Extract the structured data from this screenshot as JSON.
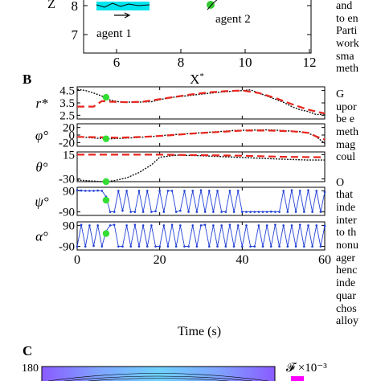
{
  "panel_a": {
    "ylabel_glyph": "Z",
    "ytick_8": "8",
    "ytick_7": "7",
    "xticks": [
      "6",
      "8",
      "10",
      "12"
    ],
    "xlabel": "X*",
    "agent1_label": "agent 1",
    "agent2_label": "agent 2",
    "colors": {
      "agent_path": "#00e5ee",
      "agent2_marker": "#33cc33"
    }
  },
  "panel_b": {
    "label": "B",
    "time_axis_label": "Time (s)",
    "time_ticks": [
      "0",
      "20",
      "40",
      "60"
    ],
    "subplots": [
      {
        "ylabel": "r*",
        "yticks": [
          "4.5",
          "3.5",
          "2.5"
        ]
      },
      {
        "ylabel": "φ°",
        "yticks": [
          "20",
          "0",
          "-20"
        ]
      },
      {
        "ylabel": "θ°",
        "yticks": [
          "15",
          "-30"
        ]
      },
      {
        "ylabel": "ψ°",
        "yticks": [
          "90",
          "-90"
        ]
      },
      {
        "ylabel": "α°",
        "yticks": [
          "90",
          "-90"
        ]
      }
    ],
    "colors": {
      "measured": "#111111",
      "fit": "#e8251e",
      "angle_series": "#1f3fd6",
      "marker": "#33dd33"
    }
  },
  "panel_c": {
    "label": "C",
    "ytick_180": "180",
    "colorbar_label": "𝓕 ×10⁻³",
    "colors": {
      "heatmap_top": "#8a5bff",
      "heatmap_mid": "#6fd2ff",
      "colorbar": "#ff00ff"
    }
  },
  "side_text_lines": [
    "and",
    "to en",
    "Parti",
    "work",
    "sma",
    "meth",
    "",
    "G",
    "upor",
    "be e",
    "meth",
    "mag",
    "coul",
    "",
    "O",
    "that",
    "inde",
    "inter",
    "to th",
    "nonu",
    "ager",
    "henc",
    "inde",
    "quar",
    "chos",
    "alloy"
  ],
  "chart_data": [
    {
      "type": "line",
      "title": "",
      "xlabel": "Time (s)",
      "ylabel": "r*",
      "xlim": [
        0,
        60
      ],
      "ylim": [
        2.2,
        4.8
      ],
      "series": [
        {
          "x": [
            0,
            2,
            4,
            6,
            8,
            10,
            14,
            18,
            22,
            26,
            30,
            34,
            38,
            42,
            44,
            46,
            48,
            50,
            52,
            54,
            56,
            58,
            60
          ],
          "y": [
            4.6,
            4.5,
            4.3,
            4.05,
            3.72,
            3.6,
            3.55,
            3.6,
            3.9,
            4.05,
            4.2,
            4.35,
            4.45,
            4.55,
            4.3,
            4.05,
            3.8,
            3.55,
            3.2,
            2.95,
            2.8,
            2.55,
            2.6
          ]
        },
        {
          "x": [
            0,
            4,
            6,
            8,
            12,
            16,
            20,
            24,
            28,
            32,
            36,
            40,
            44,
            48,
            52,
            56,
            60
          ],
          "y": [
            3.2,
            3.2,
            3.65,
            3.6,
            3.55,
            3.6,
            3.8,
            4.0,
            4.2,
            4.35,
            4.45,
            4.5,
            4.3,
            3.9,
            3.4,
            2.95,
            2.65
          ]
        }
      ],
      "markers": [
        {
          "x": 7,
          "y": 3.95
        }
      ]
    },
    {
      "type": "line",
      "xlabel": "Time (s)",
      "ylabel": "φ°",
      "xlim": [
        0,
        60
      ],
      "ylim": [
        -30,
        30
      ],
      "series": [
        {
          "x": [
            0,
            2,
            4,
            6,
            8,
            10,
            14,
            18,
            22,
            26,
            30,
            34,
            38,
            42,
            46,
            50,
            54,
            56,
            58,
            60
          ],
          "y": [
            -5,
            -6,
            -8,
            -9,
            -10,
            -9,
            -7,
            -4,
            0,
            3,
            6,
            9,
            12,
            13,
            14,
            12,
            9,
            5,
            -5,
            -22
          ]
        },
        {
          "x": [
            0,
            6,
            10,
            16,
            22,
            28,
            34,
            40,
            46,
            52,
            56,
            58,
            60
          ],
          "y": [
            -5,
            -6,
            -7,
            -5,
            -1,
            4,
            8,
            12,
            12,
            10,
            6,
            -4,
            -12
          ]
        }
      ],
      "markers": [
        {
          "x": 7,
          "y": -10
        }
      ]
    },
    {
      "type": "line",
      "xlabel": "Time (s)",
      "ylabel": "θ°",
      "xlim": [
        0,
        60
      ],
      "ylim": [
        -35,
        20
      ],
      "series": [
        {
          "x": [
            0,
            2,
            4,
            6,
            7,
            9,
            12,
            15,
            18,
            20,
            24,
            30,
            36,
            42,
            48,
            52,
            56,
            60
          ],
          "y": [
            -32,
            -33,
            -34,
            -35,
            -35,
            -33,
            -28,
            -18,
            -4,
            10,
            14,
            13,
            11,
            9,
            7,
            6,
            5,
            5
          ]
        },
        {
          "x": [
            0,
            10,
            20,
            30,
            40,
            50,
            60
          ],
          "y": [
            15,
            15,
            15,
            14,
            13,
            11,
            10
          ]
        }
      ],
      "markers": [
        {
          "x": 7,
          "y": -35
        }
      ]
    },
    {
      "type": "line",
      "xlabel": "Time (s)",
      "ylabel": "ψ°",
      "xlim": [
        0,
        60
      ],
      "ylim": [
        -120,
        120
      ],
      "series": [
        {
          "x": [
            0,
            1,
            2,
            3,
            4,
            5,
            6,
            7,
            8,
            9,
            10,
            11,
            12,
            13,
            14,
            15,
            16,
            17,
            18,
            19,
            20,
            21,
            22,
            23,
            24,
            25,
            26,
            27,
            28,
            29,
            30,
            31,
            32,
            33,
            34,
            35,
            36,
            37,
            38,
            39,
            40,
            41,
            42,
            43,
            44,
            45,
            46,
            47,
            48,
            49,
            50,
            51,
            52,
            53,
            54,
            55,
            56,
            57,
            58,
            59,
            60
          ],
          "y": [
            95,
            92,
            90,
            90,
            90,
            92,
            90,
            40,
            -90,
            -90,
            90,
            -80,
            90,
            -90,
            -90,
            90,
            -90,
            90,
            -90,
            -85,
            90,
            -90,
            90,
            90,
            -90,
            -80,
            90,
            -90,
            90,
            -90,
            95,
            -90,
            90,
            -90,
            90,
            -90,
            -90,
            90,
            -90,
            90,
            -90,
            -90,
            -90,
            -90,
            -90,
            -90,
            -90,
            -88,
            -90,
            -90,
            90,
            -90,
            95,
            -90,
            90,
            -90,
            95,
            -90,
            90,
            -90,
            80
          ]
        }
      ],
      "markers": [
        {
          "x": 7,
          "y": 10
        }
      ]
    },
    {
      "type": "line",
      "xlabel": "Time (s)",
      "ylabel": "α°",
      "xlim": [
        0,
        60
      ],
      "ylim": [
        -120,
        120
      ],
      "series": [
        {
          "x": [
            0,
            1,
            2,
            3,
            4,
            5,
            6,
            7,
            8,
            9,
            10,
            11,
            12,
            13,
            14,
            15,
            16,
            17,
            18,
            19,
            20,
            21,
            22,
            23,
            24,
            25,
            26,
            27,
            28,
            29,
            30,
            31,
            32,
            33,
            34,
            35,
            36,
            37,
            38,
            39,
            40,
            41,
            42,
            43,
            44,
            45,
            46,
            47,
            48,
            49,
            50,
            51,
            52,
            53,
            54,
            55,
            56,
            57,
            58,
            59,
            60
          ],
          "y": [
            -90,
            95,
            -90,
            90,
            -85,
            90,
            -90,
            40,
            90,
            95,
            -90,
            -90,
            90,
            -90,
            95,
            -90,
            90,
            -90,
            90,
            -90,
            -90,
            90,
            -90,
            95,
            -90,
            90,
            -90,
            -90,
            90,
            -90,
            90,
            95,
            -90,
            90,
            -90,
            90,
            -90,
            95,
            -90,
            90,
            -90,
            90,
            -90,
            -90,
            90,
            -90,
            90,
            -90,
            95,
            -90,
            90,
            -90,
            90,
            -90,
            95,
            -90,
            90,
            -90,
            90,
            -90,
            85
          ]
        }
      ],
      "markers": [
        {
          "x": 7,
          "y": 20
        }
      ]
    }
  ]
}
